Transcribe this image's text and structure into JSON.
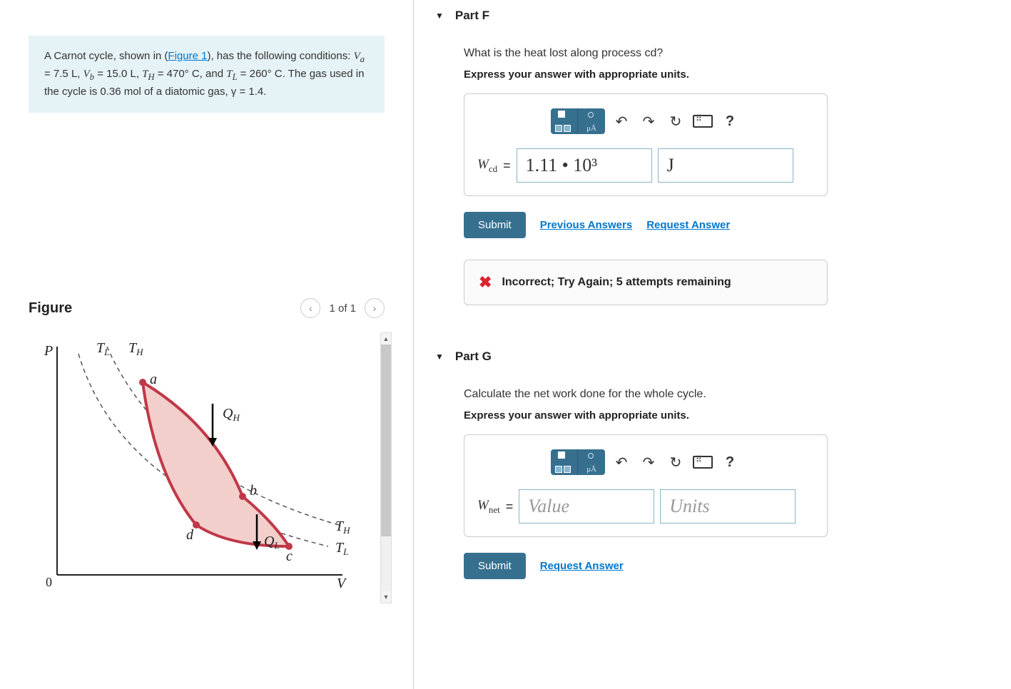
{
  "prompt": {
    "pre_link": "A Carnot cycle, shown in (",
    "link_text": "Figure 1",
    "post_link": "), has the following conditions: ",
    "line_end": "The gas used in the cycle is 0.36 mol of a diatomic gas, γ = 1.4.",
    "va_label": "V",
    "va_sub": "a",
    "va_val": " = 7.5 L, ",
    "vb_label": "V",
    "vb_sub": "b",
    "vb_val": " = 15.0 L, ",
    "th_label": "T",
    "th_sub": "H",
    "th_val": " = 470° C, and ",
    "tl_label": "T",
    "tl_sub": "L",
    "tl_val": " = 260° C. "
  },
  "figure": {
    "title": "Figure",
    "nav_text": "1 of 1",
    "chart": {
      "type": "pv-diagram",
      "background": "#ffffff",
      "axis_color": "#222222",
      "curve_color": "#c03848",
      "fill_color": "#f2cfca",
      "dash_color": "#555555",
      "labels": {
        "P": "P",
        "V": "V",
        "TL_top": "T",
        "TL_top_sub": "L",
        "TH_top": "T",
        "TH_top_sub": "H",
        "a": "a",
        "b": "b",
        "c": "c",
        "d": "d",
        "QH": "Q",
        "QH_sub": "H",
        "QL": "Q",
        "QL_sub": "L",
        "TH_r": "T",
        "TH_r_sub": "H",
        "TL_r": "T",
        "TL_r_sub": "L",
        "zero": "0"
      },
      "points": {
        "a": [
          120,
          50
        ],
        "b": [
          260,
          210
        ],
        "c": [
          325,
          280
        ],
        "d": [
          195,
          250
        ]
      },
      "label_font": "italic 20px Times New Roman"
    }
  },
  "partF": {
    "header": "Part F",
    "question": "What is the heat lost along process cd?",
    "instruction": "Express your answer with appropriate units.",
    "var": "W",
    "var_sub": "cd",
    "value": "1.11 • 10³",
    "units": "J",
    "submit": "Submit",
    "prev": "Previous Answers",
    "req": "Request Answer",
    "feedback": "Incorrect; Try Again; 5 attempts remaining",
    "toolbar_help": "?"
  },
  "partG": {
    "header": "Part G",
    "question": "Calculate the net work done for the whole cycle.",
    "instruction": "Express your answer with appropriate units.",
    "var": "W",
    "var_sub": "net",
    "value_ph": "Value",
    "units_ph": "Units",
    "submit": "Submit",
    "req": "Request Answer",
    "toolbar_help": "?"
  },
  "colors": {
    "teal": "#37708f",
    "link": "#0077cc",
    "red": "#d9232e"
  }
}
